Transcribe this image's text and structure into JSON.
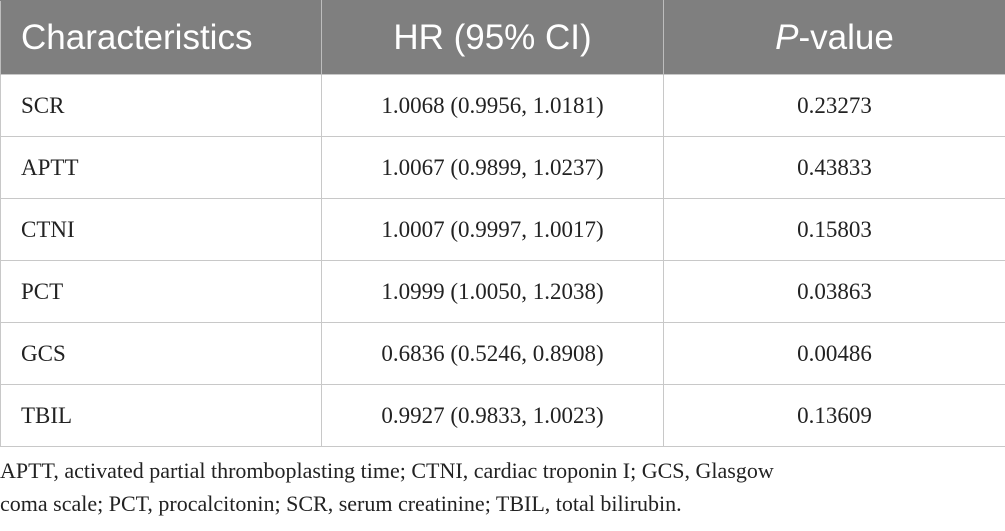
{
  "table": {
    "headers": {
      "characteristics": "Characteristics",
      "hr": "HR (95% CI)",
      "p_italic": "P",
      "p_rest": "-value"
    },
    "rows": [
      {
        "name": "SCR",
        "hr": "1.0068 (0.9956, 1.0181)",
        "p": "0.23273"
      },
      {
        "name": "APTT",
        "hr": "1.0067 (0.9899, 1.0237)",
        "p": "0.43833"
      },
      {
        "name": "CTNI",
        "hr": "1.0007 (0.9997, 1.0017)",
        "p": "0.15803"
      },
      {
        "name": "PCT",
        "hr": "1.0999 (1.0050, 1.2038)",
        "p": "0.03863"
      },
      {
        "name": "GCS",
        "hr": "0.6836 (0.5246, 0.8908)",
        "p": "0.00486"
      },
      {
        "name": "TBIL",
        "hr": "0.9927 (0.9833, 1.0023)",
        "p": "0.13609"
      }
    ]
  },
  "footnote": {
    "line1": "APTT, activated partial thromboplasting time; CTNI, cardiac troponin I; GCS, Glasgow",
    "line2": "coma scale; PCT, procalcitonin; SCR, serum creatinine; TBIL, total bilirubin."
  },
  "colors": {
    "header_bg": "#7f7f7f",
    "header_text": "#ffffff",
    "border": "#c8c8c8",
    "body_text": "#222222"
  }
}
